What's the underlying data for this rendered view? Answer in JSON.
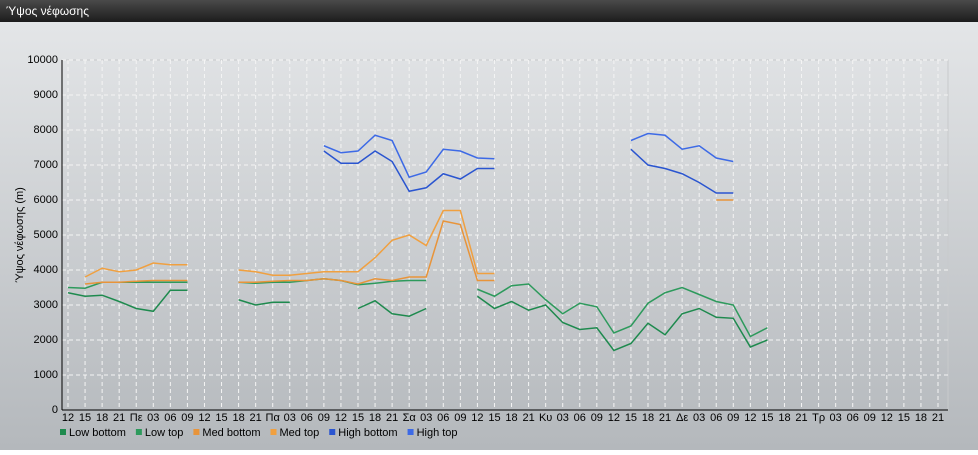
{
  "chart_data": {
    "type": "line",
    "title": "Ύψος νέφωσης",
    "y_label": "Ύψος νέφωσης (m)",
    "categories": [
      "12",
      "15",
      "18",
      "21",
      "Πε",
      "03",
      "06",
      "09",
      "12",
      "15",
      "18",
      "21",
      "Πα",
      "03",
      "06",
      "09",
      "12",
      "15",
      "18",
      "21",
      "Σα",
      "03",
      "06",
      "09",
      "12",
      "15",
      "18",
      "21",
      "Κυ",
      "03",
      "06",
      "09",
      "12",
      "15",
      "18",
      "21",
      "Δε",
      "03",
      "06",
      "09",
      "12",
      "15",
      "18",
      "21",
      "Τρ",
      "03",
      "06",
      "09",
      "12",
      "15",
      "18",
      "21"
    ],
    "ylim": [
      0,
      10000
    ],
    "yticks": [
      0,
      1000,
      2000,
      3000,
      4000,
      5000,
      6000,
      7000,
      8000,
      9000,
      10000
    ],
    "grid": true,
    "series": [
      {
        "name": "Low bottom",
        "color": "#1e8a4e",
        "values": [
          3350,
          3250,
          3280,
          3100,
          2900,
          2820,
          3420,
          3420,
          null,
          null,
          3150,
          3000,
          3080,
          3080,
          null,
          null,
          null,
          2900,
          3120,
          2750,
          2680,
          2900,
          null,
          null,
          3250,
          2900,
          3100,
          2850,
          3000,
          2500,
          2300,
          2350,
          1700,
          1900,
          2480,
          2150,
          2750,
          2900,
          2650,
          2620,
          1800,
          2000,
          null,
          null,
          null,
          null,
          null,
          null,
          null,
          null,
          null,
          null
        ]
      },
      {
        "name": "Low top",
        "color": "#2d9a5c",
        "values": [
          3500,
          3480,
          3650,
          3650,
          3650,
          3650,
          3650,
          3650,
          null,
          null,
          3650,
          3620,
          3650,
          3650,
          3700,
          3750,
          3700,
          3580,
          3620,
          3680,
          3700,
          3700,
          null,
          null,
          3450,
          3250,
          3550,
          3600,
          3150,
          2750,
          3050,
          2950,
          2200,
          2400,
          3050,
          3350,
          3500,
          3300,
          3100,
          3000,
          2100,
          2350,
          null,
          null,
          null,
          null,
          null,
          null,
          null,
          null,
          null,
          null
        ]
      },
      {
        "name": "Med bottom",
        "color": "#e8943a",
        "values": [
          null,
          3600,
          3650,
          3650,
          3680,
          3700,
          3700,
          3700,
          null,
          null,
          3650,
          3650,
          3680,
          3700,
          3700,
          3750,
          3700,
          3600,
          3750,
          3700,
          3800,
          3800,
          5400,
          5300,
          3700,
          3700,
          null,
          null,
          null,
          null,
          null,
          null,
          null,
          null,
          null,
          null,
          null,
          null,
          6000,
          6000,
          null,
          null,
          null,
          null,
          null,
          null,
          null,
          null,
          null,
          null,
          null,
          null
        ]
      },
      {
        "name": "Med top",
        "color": "#f0a040",
        "values": [
          null,
          3800,
          4050,
          3950,
          4000,
          4200,
          4150,
          4150,
          null,
          null,
          4000,
          3950,
          3850,
          3850,
          3900,
          3950,
          3950,
          3950,
          4350,
          4850,
          5000,
          4700,
          5700,
          5700,
          3900,
          3900,
          null,
          null,
          null,
          null,
          null,
          null,
          null,
          null,
          null,
          null,
          null,
          null,
          null,
          null,
          null,
          null,
          null,
          null,
          null,
          null,
          null,
          null,
          null,
          null,
          null,
          null
        ]
      },
      {
        "name": "High bottom",
        "color": "#2a55d0",
        "values": [
          null,
          null,
          null,
          null,
          null,
          null,
          null,
          null,
          null,
          null,
          null,
          null,
          null,
          null,
          null,
          7400,
          7050,
          7050,
          7400,
          7100,
          6250,
          6350,
          6750,
          6600,
          6900,
          6900,
          null,
          null,
          null,
          null,
          null,
          null,
          null,
          7450,
          7000,
          6900,
          6750,
          6500,
          6200,
          6200,
          null,
          null,
          null,
          null,
          null,
          null,
          null,
          null,
          null,
          null,
          null,
          null
        ]
      },
      {
        "name": "High top",
        "color": "#3d6ae6",
        "values": [
          null,
          null,
          null,
          null,
          null,
          null,
          null,
          null,
          null,
          null,
          null,
          null,
          null,
          null,
          null,
          7550,
          7350,
          7400,
          7850,
          7700,
          6650,
          6800,
          7450,
          7400,
          7200,
          7180,
          null,
          null,
          null,
          null,
          null,
          null,
          null,
          7700,
          7900,
          7850,
          7450,
          7550,
          7200,
          7100,
          null,
          null,
          null,
          null,
          null,
          null,
          null,
          null,
          null,
          null,
          null,
          null
        ]
      }
    ]
  }
}
